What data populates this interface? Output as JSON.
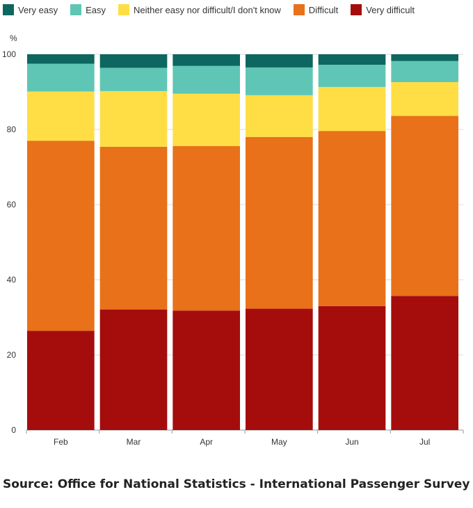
{
  "chart_data": {
    "type": "bar",
    "stacked": true,
    "categories": [
      "Feb",
      "Mar",
      "Apr",
      "May",
      "Jun",
      "Jul"
    ],
    "series": [
      {
        "name": "Very difficult",
        "color": "#a50d0d",
        "values": [
          26.4,
          32.1,
          31.8,
          32.3,
          33.0,
          35.7
        ]
      },
      {
        "name": "Difficult",
        "color": "#e8711a",
        "values": [
          50.6,
          43.3,
          43.8,
          45.7,
          46.6,
          47.9
        ]
      },
      {
        "name": "Neither easy nor difficult/I don't know",
        "color": "#ffde45",
        "values": [
          13.1,
          14.8,
          13.9,
          11.1,
          11.7,
          9.0
        ]
      },
      {
        "name": "Easy",
        "color": "#5fc6b5",
        "values": [
          7.4,
          6.2,
          7.4,
          7.4,
          5.9,
          5.6
        ]
      },
      {
        "name": "Very easy",
        "color": "#0d6760",
        "values": [
          2.5,
          3.6,
          3.1,
          3.5,
          2.8,
          1.8
        ]
      }
    ],
    "legend_order": [
      "Very easy",
      "Easy",
      "Neither easy nor difficult/I don't know",
      "Difficult",
      "Very difficult"
    ],
    "ylabel": "%",
    "ylim": [
      0,
      100
    ],
    "yticks": [
      0,
      20,
      40,
      60,
      80,
      100
    ],
    "grid": true,
    "legend_position": "top-left",
    "title": "",
    "xlabel": ""
  },
  "source": "Source: Office for National Statistics - International Passenger Survey"
}
